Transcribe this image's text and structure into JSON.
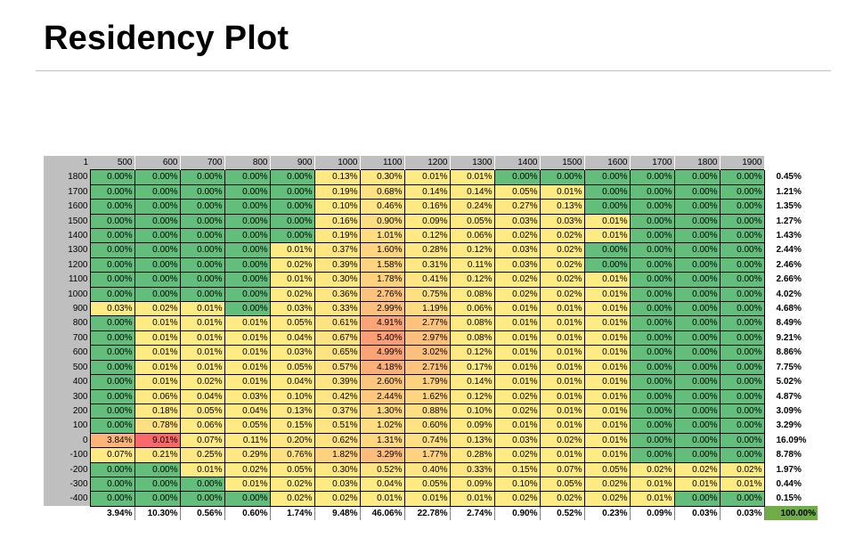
{
  "title": "Residency Plot",
  "corner_label": "1",
  "columns": [
    "500",
    "600",
    "700",
    "800",
    "900",
    "1000",
    "1100",
    "1200",
    "1300",
    "1400",
    "1500",
    "1600",
    "1700",
    "1800",
    "1900"
  ],
  "rows": [
    {
      "label": "1800",
      "values": [
        "0.00%",
        "0.00%",
        "0.00%",
        "0.00%",
        "0.00%",
        "0.13%",
        "0.30%",
        "0.01%",
        "0.01%",
        "0.00%",
        "0.00%",
        "0.00%",
        "0.00%",
        "0.00%",
        "0.00%"
      ],
      "total": "0.45%"
    },
    {
      "label": "1700",
      "values": [
        "0.00%",
        "0.00%",
        "0.00%",
        "0.00%",
        "0.00%",
        "0.19%",
        "0.68%",
        "0.14%",
        "0.14%",
        "0.05%",
        "0.01%",
        "0.00%",
        "0.00%",
        "0.00%",
        "0.00%"
      ],
      "total": "1.21%"
    },
    {
      "label": "1600",
      "values": [
        "0.00%",
        "0.00%",
        "0.00%",
        "0.00%",
        "0.00%",
        "0.10%",
        "0.46%",
        "0.16%",
        "0.24%",
        "0.27%",
        "0.13%",
        "0.00%",
        "0.00%",
        "0.00%",
        "0.00%"
      ],
      "total": "1.35%"
    },
    {
      "label": "1500",
      "values": [
        "0.00%",
        "0.00%",
        "0.00%",
        "0.00%",
        "0.00%",
        "0.16%",
        "0.90%",
        "0.09%",
        "0.05%",
        "0.03%",
        "0.03%",
        "0.01%",
        "0.00%",
        "0.00%",
        "0.00%"
      ],
      "total": "1.27%"
    },
    {
      "label": "1400",
      "values": [
        "0.00%",
        "0.00%",
        "0.00%",
        "0.00%",
        "0.00%",
        "0.19%",
        "1.01%",
        "0.12%",
        "0.06%",
        "0.02%",
        "0.02%",
        "0.01%",
        "0.00%",
        "0.00%",
        "0.00%"
      ],
      "total": "1.43%"
    },
    {
      "label": "1300",
      "values": [
        "0.00%",
        "0.00%",
        "0.00%",
        "0.00%",
        "0.01%",
        "0.37%",
        "1.60%",
        "0.28%",
        "0.12%",
        "0.03%",
        "0.02%",
        "0.00%",
        "0.00%",
        "0.00%",
        "0.00%"
      ],
      "total": "2.44%"
    },
    {
      "label": "1200",
      "values": [
        "0.00%",
        "0.00%",
        "0.00%",
        "0.00%",
        "0.02%",
        "0.39%",
        "1.58%",
        "0.31%",
        "0.11%",
        "0.03%",
        "0.02%",
        "0.00%",
        "0.00%",
        "0.00%",
        "0.00%"
      ],
      "total": "2.46%"
    },
    {
      "label": "1100",
      "values": [
        "0.00%",
        "0.00%",
        "0.00%",
        "0.00%",
        "0.01%",
        "0.30%",
        "1.78%",
        "0.41%",
        "0.12%",
        "0.02%",
        "0.02%",
        "0.01%",
        "0.00%",
        "0.00%",
        "0.00%"
      ],
      "total": "2.66%"
    },
    {
      "label": "1000",
      "values": [
        "0.00%",
        "0.00%",
        "0.00%",
        "0.00%",
        "0.02%",
        "0.36%",
        "2.76%",
        "0.75%",
        "0.08%",
        "0.02%",
        "0.02%",
        "0.01%",
        "0.00%",
        "0.00%",
        "0.00%"
      ],
      "total": "4.02%"
    },
    {
      "label": "900",
      "values": [
        "0.03%",
        "0.02%",
        "0.01%",
        "0.00%",
        "0.03%",
        "0.33%",
        "2.99%",
        "1.19%",
        "0.06%",
        "0.01%",
        "0.01%",
        "0.01%",
        "0.00%",
        "0.00%",
        "0.00%"
      ],
      "total": "4.68%"
    },
    {
      "label": "800",
      "values": [
        "0.00%",
        "0.01%",
        "0.01%",
        "0.01%",
        "0.05%",
        "0.61%",
        "4.91%",
        "2.77%",
        "0.08%",
        "0.01%",
        "0.01%",
        "0.01%",
        "0.00%",
        "0.00%",
        "0.00%"
      ],
      "total": "8.49%"
    },
    {
      "label": "700",
      "values": [
        "0.00%",
        "0.01%",
        "0.01%",
        "0.01%",
        "0.04%",
        "0.67%",
        "5.40%",
        "2.97%",
        "0.08%",
        "0.01%",
        "0.01%",
        "0.01%",
        "0.00%",
        "0.00%",
        "0.00%"
      ],
      "total": "9.21%"
    },
    {
      "label": "600",
      "values": [
        "0.00%",
        "0.01%",
        "0.01%",
        "0.01%",
        "0.03%",
        "0.65%",
        "4.99%",
        "3.02%",
        "0.12%",
        "0.01%",
        "0.01%",
        "0.01%",
        "0.00%",
        "0.00%",
        "0.00%"
      ],
      "total": "8.86%"
    },
    {
      "label": "500",
      "values": [
        "0.00%",
        "0.01%",
        "0.01%",
        "0.01%",
        "0.05%",
        "0.57%",
        "4.18%",
        "2.71%",
        "0.17%",
        "0.01%",
        "0.01%",
        "0.01%",
        "0.00%",
        "0.00%",
        "0.00%"
      ],
      "total": "7.75%"
    },
    {
      "label": "400",
      "values": [
        "0.00%",
        "0.01%",
        "0.02%",
        "0.01%",
        "0.04%",
        "0.39%",
        "2.60%",
        "1.79%",
        "0.14%",
        "0.01%",
        "0.01%",
        "0.01%",
        "0.00%",
        "0.00%",
        "0.00%"
      ],
      "total": "5.02%"
    },
    {
      "label": "300",
      "values": [
        "0.00%",
        "0.06%",
        "0.04%",
        "0.03%",
        "0.10%",
        "0.42%",
        "2.44%",
        "1.62%",
        "0.12%",
        "0.02%",
        "0.01%",
        "0.01%",
        "0.00%",
        "0.00%",
        "0.00%"
      ],
      "total": "4.87%"
    },
    {
      "label": "200",
      "values": [
        "0.00%",
        "0.18%",
        "0.05%",
        "0.04%",
        "0.13%",
        "0.37%",
        "1.30%",
        "0.88%",
        "0.10%",
        "0.02%",
        "0.01%",
        "0.01%",
        "0.00%",
        "0.00%",
        "0.00%"
      ],
      "total": "3.09%"
    },
    {
      "label": "100",
      "values": [
        "0.00%",
        "0.78%",
        "0.06%",
        "0.05%",
        "0.15%",
        "0.51%",
        "1.02%",
        "0.60%",
        "0.09%",
        "0.01%",
        "0.01%",
        "0.01%",
        "0.00%",
        "0.00%",
        "0.00%"
      ],
      "total": "3.29%"
    },
    {
      "label": "0",
      "values": [
        "3.84%",
        "9.01%",
        "0.07%",
        "0.11%",
        "0.20%",
        "0.62%",
        "1.31%",
        "0.74%",
        "0.13%",
        "0.03%",
        "0.02%",
        "0.01%",
        "0.00%",
        "0.00%",
        "0.00%"
      ],
      "total": "16.09%"
    },
    {
      "label": "-100",
      "values": [
        "0.07%",
        "0.21%",
        "0.25%",
        "0.29%",
        "0.76%",
        "1.82%",
        "3.29%",
        "1.77%",
        "0.28%",
        "0.02%",
        "0.01%",
        "0.01%",
        "0.00%",
        "0.00%",
        "0.00%"
      ],
      "total": "8.78%"
    },
    {
      "label": "-200",
      "values": [
        "0.00%",
        "0.00%",
        "0.01%",
        "0.02%",
        "0.05%",
        "0.30%",
        "0.52%",
        "0.40%",
        "0.33%",
        "0.15%",
        "0.07%",
        "0.05%",
        "0.02%",
        "0.02%",
        "0.02%"
      ],
      "total": "1.97%"
    },
    {
      "label": "-300",
      "values": [
        "0.00%",
        "0.00%",
        "0.00%",
        "0.01%",
        "0.02%",
        "0.03%",
        "0.04%",
        "0.05%",
        "0.09%",
        "0.10%",
        "0.05%",
        "0.02%",
        "0.01%",
        "0.01%",
        "0.01%"
      ],
      "total": "0.44%"
    },
    {
      "label": "-400",
      "values": [
        "0.00%",
        "0.00%",
        "0.00%",
        "0.00%",
        "0.02%",
        "0.02%",
        "0.01%",
        "0.01%",
        "0.01%",
        "0.02%",
        "0.02%",
        "0.02%",
        "0.01%",
        "0.00%",
        "0.00%"
      ],
      "total": "0.15%"
    }
  ],
  "column_totals": [
    "3.94%",
    "10.30%",
    "0.56%",
    "0.60%",
    "1.74%",
    "9.48%",
    "46.06%",
    "22.78%",
    "2.74%",
    "0.90%",
    "0.52%",
    "0.23%",
    "0.09%",
    "0.03%",
    "0.03%"
  ],
  "grand_total": "100.00%",
  "colors": {
    "low": "#63be7b",
    "mid": "#ffeb84",
    "high": "#f8696b",
    "header_gray": "#bfbfbf",
    "grand_total_bg": "#70ad47"
  }
}
